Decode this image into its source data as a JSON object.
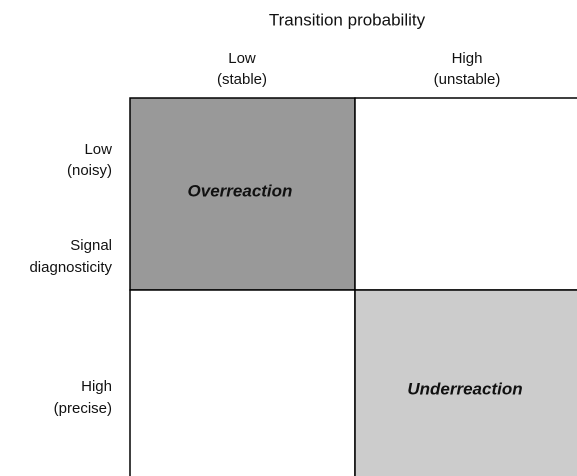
{
  "header": {
    "title": "Transition probability"
  },
  "columns": [
    {
      "label": "Low",
      "sublabel": "(stable)"
    },
    {
      "label": "High",
      "sublabel": "(unstable)"
    }
  ],
  "rows": [
    {
      "label": "Low",
      "sublabel": "(noisy)"
    },
    {
      "label": "High",
      "sublabel": "(precise)"
    }
  ],
  "axis_label": {
    "lines": [
      "Signal",
      "diagnosticity"
    ]
  },
  "cells": [
    {
      "label": "Overreaction"
    },
    {
      "label": "Underreaction"
    }
  ]
}
